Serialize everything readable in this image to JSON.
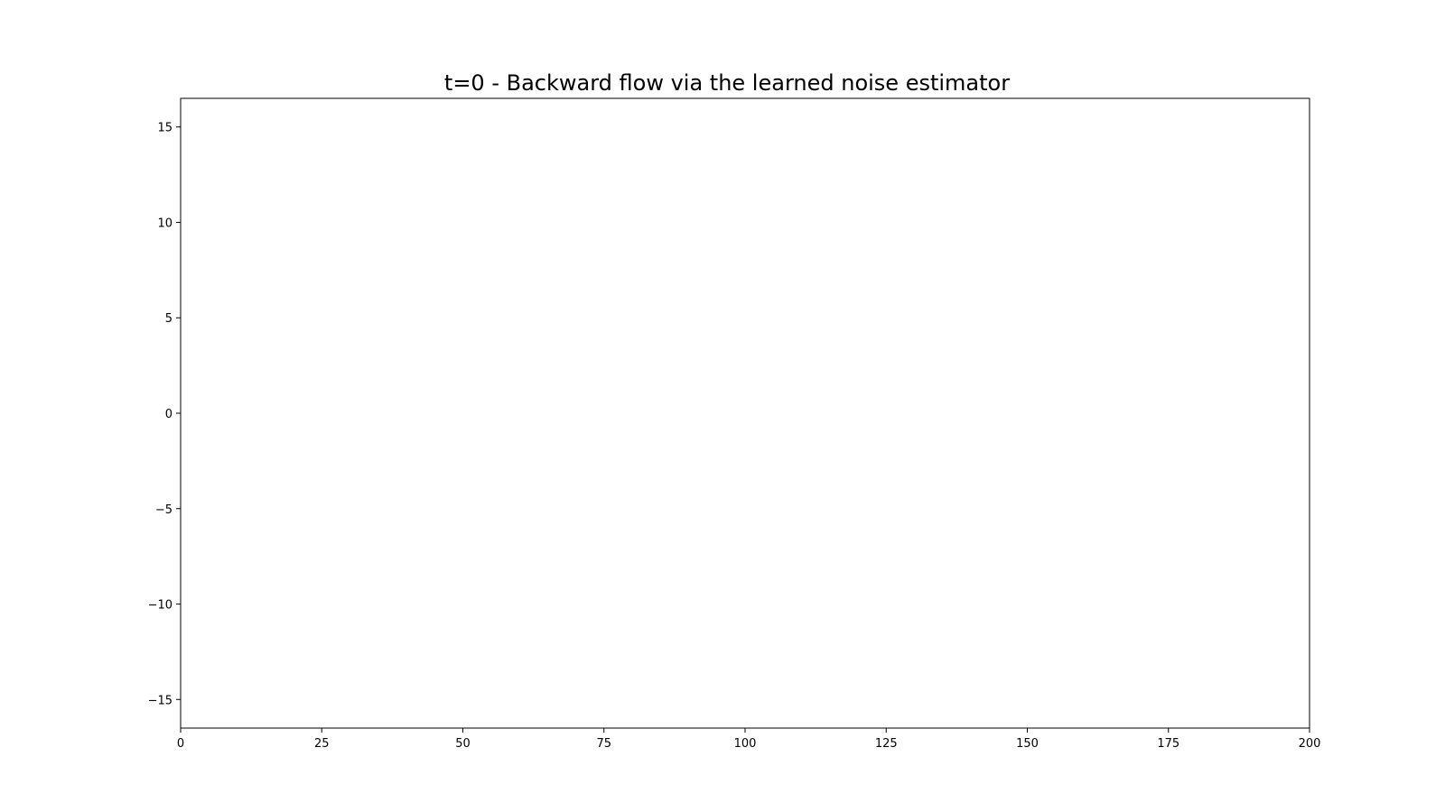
{
  "chart_data": {
    "type": "line",
    "title": "t=0 - Backward flow via the learned noise estimator",
    "xlabel": "",
    "ylabel": "",
    "xlim": [
      0,
      200
    ],
    "ylim": [
      -16.5,
      16.5
    ],
    "xticks": [
      0,
      25,
      50,
      75,
      100,
      125,
      150,
      175,
      200
    ],
    "xtick_labels": [
      "0",
      "25",
      "50",
      "75",
      "100",
      "125",
      "150",
      "175",
      "200"
    ],
    "yticks": [
      -15,
      -10,
      -5,
      0,
      5,
      10,
      15
    ],
    "ytick_labels": [
      "−15",
      "−10",
      "−5",
      "0",
      "5",
      "10",
      "15"
    ],
    "grid": false,
    "series": []
  }
}
